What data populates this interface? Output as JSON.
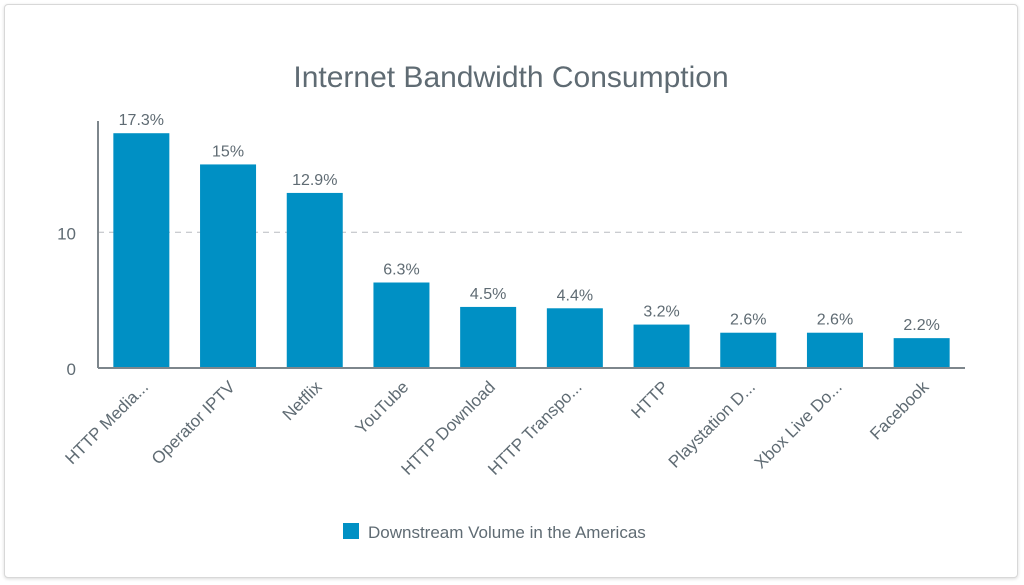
{
  "chart_data": {
    "type": "bar",
    "title": "Internet Bandwidth Consumption",
    "categories": [
      "HTTP Media...",
      "Operator IPTV",
      "Netflix",
      "YouTube",
      "HTTP Download",
      "HTTP Transpo...",
      "HTTP",
      "Playstation D...",
      "Xbox Live Do...",
      "Facebook"
    ],
    "series": [
      {
        "name": "Downstream Volume in the Americas",
        "values": [
          17.3,
          15,
          12.9,
          6.3,
          4.5,
          4.4,
          3.2,
          2.6,
          2.6,
          2.2
        ],
        "color": "#0090c4"
      }
    ],
    "data_labels": [
      "17.3%",
      "15%",
      "12.9%",
      "6.3%",
      "4.5%",
      "4.4%",
      "3.2%",
      "2.6%",
      "2.6%",
      "2.2%"
    ],
    "yticks": [
      0,
      10
    ],
    "ylim": [
      0,
      18.2
    ],
    "grid": "dashed horizontal at 10",
    "legend": "bottom",
    "xlabel": "",
    "ylabel": ""
  }
}
